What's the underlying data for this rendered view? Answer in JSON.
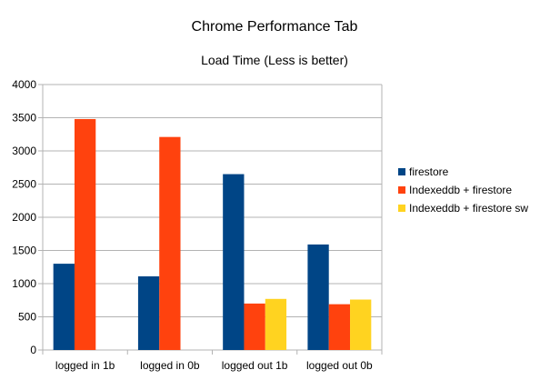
{
  "chart_data": {
    "type": "bar",
    "title": "Chrome Performance Tab",
    "subtitle": "Load Time (Less is better)",
    "xlabel": "",
    "ylabel": "",
    "ylim": [
      0,
      4000
    ],
    "yticks": [
      0,
      500,
      1000,
      1500,
      2000,
      2500,
      3000,
      3500,
      4000
    ],
    "grid": true,
    "legend_position": "right",
    "categories": [
      "logged in 1b",
      "logged in 0b",
      "logged out 1b",
      "logged out 0b"
    ],
    "series": [
      {
        "name": "firestore",
        "color": "#004586",
        "values": [
          1300,
          1110,
          2650,
          1590
        ]
      },
      {
        "name": "Indexeddb + firestore",
        "color": "#ff420e",
        "values": [
          3480,
          3210,
          700,
          690
        ]
      },
      {
        "name": "Indexeddb + firestore sw",
        "color": "#ffd320",
        "values": [
          null,
          null,
          770,
          760
        ]
      }
    ]
  }
}
